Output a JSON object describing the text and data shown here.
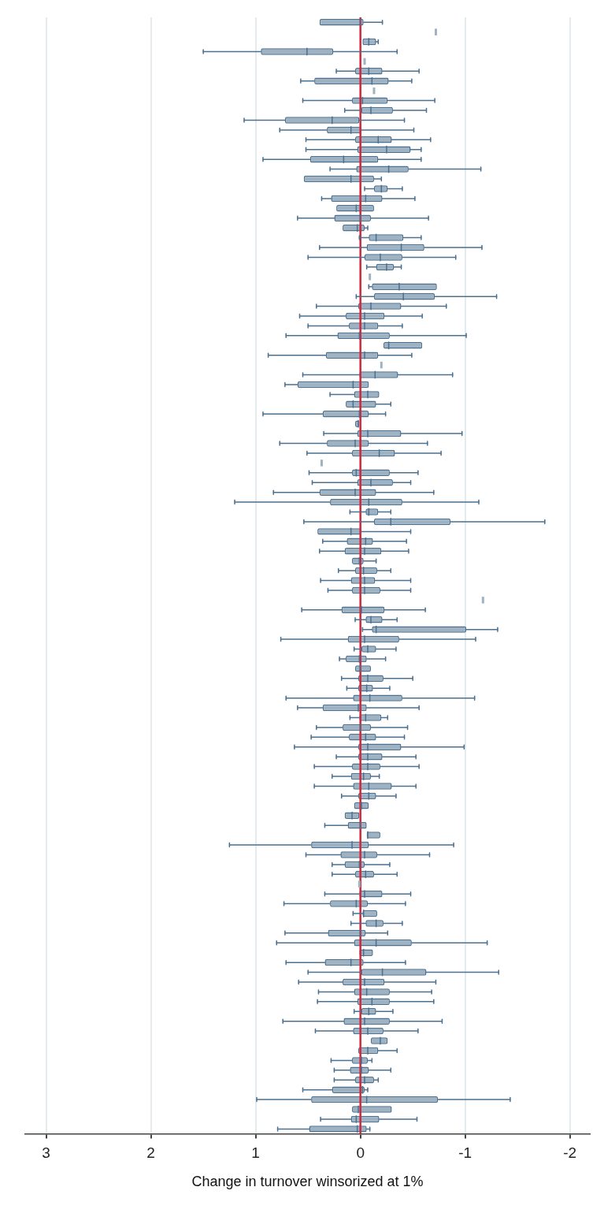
{
  "chart_data": {
    "type": "box",
    "orientation": "horizontal",
    "xlabel": "Change in turnover winsorized at 1%",
    "xlim": [
      3.2,
      -2.19
    ],
    "xticks": [
      3,
      2,
      1,
      0,
      -1,
      -2
    ],
    "grid": "x",
    "tick_labels": "x",
    "color": "#9eb2c2",
    "ref_lines": [
      {
        "axis": "x",
        "value": 0,
        "color": "#d0283c"
      }
    ],
    "categories": [
      null,
      null,
      null,
      null,
      null,
      null,
      null,
      null,
      null,
      null,
      null,
      null,
      null,
      null,
      null,
      null,
      null,
      null,
      null,
      null,
      null,
      null,
      null,
      null,
      null,
      null,
      null,
      null,
      null,
      null,
      null,
      null,
      null,
      null,
      null,
      null,
      null,
      null,
      null,
      null,
      null,
      null,
      null,
      null,
      null,
      null,
      null,
      null,
      null,
      null,
      null,
      null,
      null,
      null,
      null,
      null,
      null,
      null,
      null,
      null,
      null,
      null,
      null,
      null,
      null,
      null,
      null,
      null,
      null,
      null,
      null,
      null,
      null,
      null,
      null,
      null,
      null,
      null,
      null,
      null,
      null,
      null,
      null,
      null,
      null,
      null,
      null,
      null,
      null,
      null,
      null,
      null,
      null,
      null,
      null,
      null,
      null,
      null,
      null,
      null,
      null,
      null,
      null,
      null,
      null,
      null,
      null,
      null,
      null,
      null,
      null,
      null,
      null,
      null
    ],
    "boxes": [
      {
        "low": -0.21,
        "q1": -0.03,
        "median": 0.0,
        "q3": 0.39,
        "high": 0.39
      },
      {
        "low": -0.72,
        "q1": -0.72,
        "median": -0.72,
        "q3": -0.72,
        "high": -0.72
      },
      {
        "low": -0.17,
        "q1": -0.15,
        "median": -0.08,
        "q3": -0.02,
        "high": -0.02
      },
      {
        "low": -0.35,
        "q1": 0.26,
        "median": 0.51,
        "q3": 0.95,
        "high": 1.5
      },
      {
        "low": -0.04,
        "q1": -0.04,
        "median": -0.04,
        "q3": -0.04,
        "high": -0.04
      },
      {
        "low": -0.56,
        "q1": -0.21,
        "median": -0.08,
        "q3": 0.05,
        "high": 0.23
      },
      {
        "low": -0.49,
        "q1": -0.27,
        "median": -0.11,
        "q3": 0.44,
        "high": 0.57
      },
      {
        "low": -0.13,
        "q1": -0.13,
        "median": -0.13,
        "q3": -0.13,
        "high": -0.13
      },
      {
        "low": -0.71,
        "q1": -0.26,
        "median": -0.02,
        "q3": 0.08,
        "high": 0.55
      },
      {
        "low": -0.63,
        "q1": -0.31,
        "median": -0.1,
        "q3": 0.0,
        "high": 0.15
      },
      {
        "low": -0.42,
        "q1": 0.01,
        "median": 0.27,
        "q3": 0.72,
        "high": 1.11
      },
      {
        "low": -0.51,
        "q1": -0.01,
        "median": 0.09,
        "q3": 0.32,
        "high": 0.77
      },
      {
        "low": -0.67,
        "q1": -0.3,
        "median": -0.17,
        "q3": 0.05,
        "high": 0.52
      },
      {
        "low": -0.58,
        "q1": -0.48,
        "median": -0.25,
        "q3": 0.03,
        "high": 0.52
      },
      {
        "low": -0.58,
        "q1": -0.17,
        "median": 0.16,
        "q3": 0.48,
        "high": 0.93
      },
      {
        "low": -1.15,
        "q1": -0.46,
        "median": -0.27,
        "q3": 0.04,
        "high": 0.29
      },
      {
        "low": -0.2,
        "q1": -0.13,
        "median": 0.09,
        "q3": 0.54,
        "high": 0.54
      },
      {
        "low": -0.4,
        "q1": -0.26,
        "median": -0.2,
        "q3": -0.13,
        "high": -0.04
      },
      {
        "low": -0.52,
        "q1": -0.21,
        "median": -0.05,
        "q3": 0.28,
        "high": 0.37
      },
      {
        "low": -0.13,
        "q1": -0.13,
        "median": 0.04,
        "q3": 0.23,
        "high": 0.23
      },
      {
        "low": -0.65,
        "q1": -0.1,
        "median": 0.0,
        "q3": 0.25,
        "high": 0.6
      },
      {
        "low": -0.07,
        "q1": -0.04,
        "median": 0.03,
        "q3": 0.17,
        "high": 0.17
      },
      {
        "low": -0.58,
        "q1": -0.41,
        "median": -0.15,
        "q3": -0.08,
        "high": 0.01
      },
      {
        "low": -1.16,
        "q1": -0.61,
        "median": -0.39,
        "q3": -0.06,
        "high": 0.39
      },
      {
        "low": -0.91,
        "q1": -0.4,
        "median": -0.19,
        "q3": -0.04,
        "high": 0.5
      },
      {
        "low": -0.39,
        "q1": -0.32,
        "median": -0.25,
        "q3": -0.15,
        "high": -0.06
      },
      {
        "low": -0.09,
        "q1": -0.09,
        "median": -0.09,
        "q3": -0.09,
        "high": -0.09
      },
      {
        "low": -0.73,
        "q1": -0.73,
        "median": -0.37,
        "q3": -0.11,
        "high": -0.08
      },
      {
        "low": -1.3,
        "q1": -0.71,
        "median": -0.41,
        "q3": -0.13,
        "high": 0.04
      },
      {
        "low": -0.82,
        "q1": -0.39,
        "median": -0.1,
        "q3": 0.02,
        "high": 0.42
      },
      {
        "low": -0.59,
        "q1": -0.23,
        "median": -0.04,
        "q3": 0.14,
        "high": 0.58
      },
      {
        "low": -0.4,
        "q1": -0.17,
        "median": -0.04,
        "q3": 0.11,
        "high": 0.5
      },
      {
        "low": -1.01,
        "q1": -0.28,
        "median": 0.01,
        "q3": 0.22,
        "high": 0.71
      },
      {
        "low": -0.59,
        "q1": -0.59,
        "median": -0.27,
        "q3": -0.22,
        "high": -0.22
      },
      {
        "low": -0.49,
        "q1": -0.17,
        "median": -0.04,
        "q3": 0.33,
        "high": 0.88
      },
      {
        "low": -0.2,
        "q1": -0.2,
        "median": -0.2,
        "q3": -0.2,
        "high": -0.2
      },
      {
        "low": -0.88,
        "q1": -0.36,
        "median": -0.14,
        "q3": 0.01,
        "high": 0.55
      },
      {
        "low": -0.08,
        "q1": -0.08,
        "median": 0.07,
        "q3": 0.6,
        "high": 0.72
      },
      {
        "low": -0.18,
        "q1": -0.18,
        "median": -0.07,
        "q3": 0.06,
        "high": 0.29
      },
      {
        "low": -0.29,
        "q1": -0.15,
        "median": 0.07,
        "q3": 0.14,
        "high": 0.14
      },
      {
        "low": -0.24,
        "q1": -0.08,
        "median": 0.01,
        "q3": 0.36,
        "high": 0.93
      },
      {
        "low": 0.01,
        "q1": 0.01,
        "median": 0.02,
        "q3": 0.05,
        "high": 0.05
      },
      {
        "low": -0.97,
        "q1": -0.39,
        "median": -0.07,
        "q3": 0.03,
        "high": 0.35
      },
      {
        "low": -0.64,
        "q1": -0.08,
        "median": 0.05,
        "q3": 0.32,
        "high": 0.77
      },
      {
        "low": -0.77,
        "q1": -0.33,
        "median": -0.18,
        "q3": 0.08,
        "high": 0.51
      },
      {
        "low": 0.37,
        "q1": 0.37,
        "median": 0.37,
        "q3": 0.37,
        "high": 0.37
      },
      {
        "low": -0.55,
        "q1": -0.28,
        "median": 0.04,
        "q3": 0.08,
        "high": 0.49
      },
      {
        "low": -0.48,
        "q1": -0.31,
        "median": -0.1,
        "q3": 0.03,
        "high": 0.46
      },
      {
        "low": -0.7,
        "q1": -0.15,
        "median": 0.05,
        "q3": 0.39,
        "high": 0.83
      },
      {
        "low": -1.13,
        "q1": -0.4,
        "median": -0.08,
        "q3": 0.29,
        "high": 1.2
      },
      {
        "low": -0.29,
        "q1": -0.17,
        "median": -0.08,
        "q3": -0.05,
        "high": 0.1
      },
      {
        "low": -1.76,
        "q1": -0.86,
        "median": -0.29,
        "q3": -0.13,
        "high": 0.54
      },
      {
        "low": -0.48,
        "q1": -0.01,
        "median": 0.09,
        "q3": 0.41,
        "high": 0.41
      },
      {
        "low": -0.44,
        "q1": -0.12,
        "median": -0.05,
        "q3": 0.13,
        "high": 0.36
      },
      {
        "low": -0.46,
        "q1": -0.2,
        "median": -0.04,
        "q3": 0.15,
        "high": 0.39
      },
      {
        "low": -0.15,
        "q1": -0.03,
        "median": 0.01,
        "q3": 0.08,
        "high": 0.08
      },
      {
        "low": -0.29,
        "q1": -0.16,
        "median": -0.03,
        "q3": 0.05,
        "high": 0.21
      },
      {
        "low": -0.48,
        "q1": -0.14,
        "median": -0.04,
        "q3": 0.09,
        "high": 0.38
      },
      {
        "low": -0.48,
        "q1": -0.19,
        "median": -0.04,
        "q3": 0.08,
        "high": 0.31
      },
      {
        "low": -1.17,
        "q1": -1.17,
        "median": -1.17,
        "q3": -1.17,
        "high": -1.17
      },
      {
        "low": -0.62,
        "q1": -0.23,
        "median": -0.01,
        "q3": 0.18,
        "high": 0.56
      },
      {
        "low": -0.35,
        "q1": -0.21,
        "median": -0.1,
        "q3": -0.05,
        "high": 0.05
      },
      {
        "low": -1.31,
        "q1": -1.01,
        "median": -0.15,
        "q3": -0.11,
        "high": -0.02
      },
      {
        "low": -1.1,
        "q1": -0.37,
        "median": -0.04,
        "q3": 0.12,
        "high": 0.76
      },
      {
        "low": -0.34,
        "q1": -0.15,
        "median": -0.07,
        "q3": -0.01,
        "high": 0.06
      },
      {
        "low": -0.24,
        "q1": -0.06,
        "median": 0.01,
        "q3": 0.14,
        "high": 0.2
      },
      {
        "low": -0.1,
        "q1": -0.1,
        "median": 0.0,
        "q3": 0.05,
        "high": 0.05
      },
      {
        "low": -0.5,
        "q1": -0.22,
        "median": -0.07,
        "q3": 0.02,
        "high": 0.18
      },
      {
        "low": -0.28,
        "q1": -0.12,
        "median": -0.06,
        "q3": 0.02,
        "high": 0.13
      },
      {
        "low": -1.09,
        "q1": -0.4,
        "median": -0.09,
        "q3": 0.07,
        "high": 0.71
      },
      {
        "low": -0.56,
        "q1": -0.06,
        "median": 0.02,
        "q3": 0.36,
        "high": 0.6
      },
      {
        "low": -0.26,
        "q1": -0.2,
        "median": -0.05,
        "q3": 0.01,
        "high": 0.1
      },
      {
        "low": -0.45,
        "q1": -0.1,
        "median": 0.0,
        "q3": 0.17,
        "high": 0.42
      },
      {
        "low": -0.42,
        "q1": -0.15,
        "median": -0.05,
        "q3": 0.11,
        "high": 0.47
      },
      {
        "low": -0.99,
        "q1": -0.39,
        "median": -0.07,
        "q3": 0.02,
        "high": 0.63
      },
      {
        "low": -0.53,
        "q1": -0.21,
        "median": -0.07,
        "q3": 0.02,
        "high": 0.23
      },
      {
        "low": -0.56,
        "q1": -0.19,
        "median": -0.07,
        "q3": 0.08,
        "high": 0.44
      },
      {
        "low": -0.18,
        "q1": -0.1,
        "median": -0.03,
        "q3": 0.09,
        "high": 0.27
      },
      {
        "low": -0.53,
        "q1": -0.3,
        "median": -0.08,
        "q3": 0.07,
        "high": 0.44
      },
      {
        "low": -0.34,
        "q1": -0.15,
        "median": -0.08,
        "q3": 0.02,
        "high": 0.18
      },
      {
        "low": -0.08,
        "q1": -0.08,
        "median": -0.01,
        "q3": 0.06,
        "high": 0.06
      },
      {
        "low": 0.01,
        "q1": 0.01,
        "median": 0.08,
        "q3": 0.15,
        "high": 0.15
      },
      {
        "low": -0.06,
        "q1": -0.06,
        "median": 0.0,
        "q3": 0.12,
        "high": 0.34
      },
      {
        "low": -0.19,
        "q1": -0.19,
        "median": -0.07,
        "q3": -0.06,
        "high": -0.06
      },
      {
        "low": -0.89,
        "q1": -0.08,
        "median": 0.08,
        "q3": 0.47,
        "high": 1.25
      },
      {
        "low": -0.66,
        "q1": -0.16,
        "median": -0.04,
        "q3": 0.19,
        "high": 0.52
      },
      {
        "low": -0.28,
        "q1": -0.04,
        "median": 0.01,
        "q3": 0.15,
        "high": 0.27
      },
      {
        "low": -0.35,
        "q1": -0.13,
        "median": -0.05,
        "q3": 0.05,
        "high": 0.27
      },
      {
        "low": 0.01,
        "q1": 0.01,
        "median": 0.01,
        "q3": 0.01,
        "high": 0.01
      },
      {
        "low": -0.48,
        "q1": -0.21,
        "median": -0.04,
        "q3": 0.01,
        "high": 0.34
      },
      {
        "low": -0.43,
        "q1": -0.07,
        "median": 0.04,
        "q3": 0.29,
        "high": 0.73
      },
      {
        "low": -0.16,
        "q1": -0.16,
        "median": -0.03,
        "q3": -0.02,
        "high": 0.07
      },
      {
        "low": -0.4,
        "q1": -0.22,
        "median": -0.15,
        "q3": -0.05,
        "high": 0.09
      },
      {
        "low": -0.26,
        "q1": -0.05,
        "median": 0.0,
        "q3": 0.31,
        "high": 0.72
      },
      {
        "low": -1.21,
        "q1": -0.49,
        "median": -0.15,
        "q3": 0.06,
        "high": 0.8
      },
      {
        "low": -0.12,
        "q1": -0.12,
        "median": -0.03,
        "q3": 0.01,
        "high": 0.01
      },
      {
        "low": -0.43,
        "q1": -0.03,
        "median": 0.09,
        "q3": 0.34,
        "high": 0.71
      },
      {
        "low": -1.32,
        "q1": -0.63,
        "median": -0.21,
        "q3": 0.0,
        "high": 0.5
      },
      {
        "low": -0.72,
        "q1": -0.23,
        "median": -0.04,
        "q3": 0.17,
        "high": 0.59
      },
      {
        "low": -0.68,
        "q1": -0.28,
        "median": -0.06,
        "q3": 0.06,
        "high": 0.4
      },
      {
        "low": -0.7,
        "q1": -0.28,
        "median": -0.11,
        "q3": 0.03,
        "high": 0.41
      },
      {
        "low": -0.31,
        "q1": -0.15,
        "median": -0.08,
        "q3": 0.0,
        "high": 0.06
      },
      {
        "low": -0.78,
        "q1": -0.28,
        "median": -0.04,
        "q3": 0.16,
        "high": 0.74
      },
      {
        "low": -0.55,
        "q1": -0.22,
        "median": -0.07,
        "q3": 0.07,
        "high": 0.43
      },
      {
        "low": -0.26,
        "q1": -0.26,
        "median": -0.19,
        "q3": -0.1,
        "high": -0.1
      },
      {
        "low": -0.35,
        "q1": -0.17,
        "median": -0.07,
        "q3": 0.02,
        "high": 0.02
      },
      {
        "low": -0.11,
        "q1": -0.07,
        "median": -0.01,
        "q3": 0.08,
        "high": 0.28
      },
      {
        "low": -0.29,
        "q1": -0.08,
        "median": -0.01,
        "q3": 0.1,
        "high": 0.25
      },
      {
        "low": -0.17,
        "q1": -0.13,
        "median": -0.04,
        "q3": 0.05,
        "high": 0.25
      },
      {
        "low": -0.07,
        "q1": -0.04,
        "median": -0.02,
        "q3": 0.27,
        "high": 0.55
      },
      {
        "low": -1.43,
        "q1": -0.74,
        "median": -0.06,
        "q3": 0.47,
        "high": 0.99
      },
      {
        "low": -0.3,
        "q1": -0.3,
        "median": 0.02,
        "q3": 0.08,
        "high": 0.08
      },
      {
        "low": -0.54,
        "q1": -0.18,
        "median": 0.04,
        "q3": 0.09,
        "high": 0.38
      },
      {
        "low": -0.09,
        "q1": -0.06,
        "median": 0.03,
        "q3": 0.49,
        "high": 0.79
      }
    ]
  }
}
